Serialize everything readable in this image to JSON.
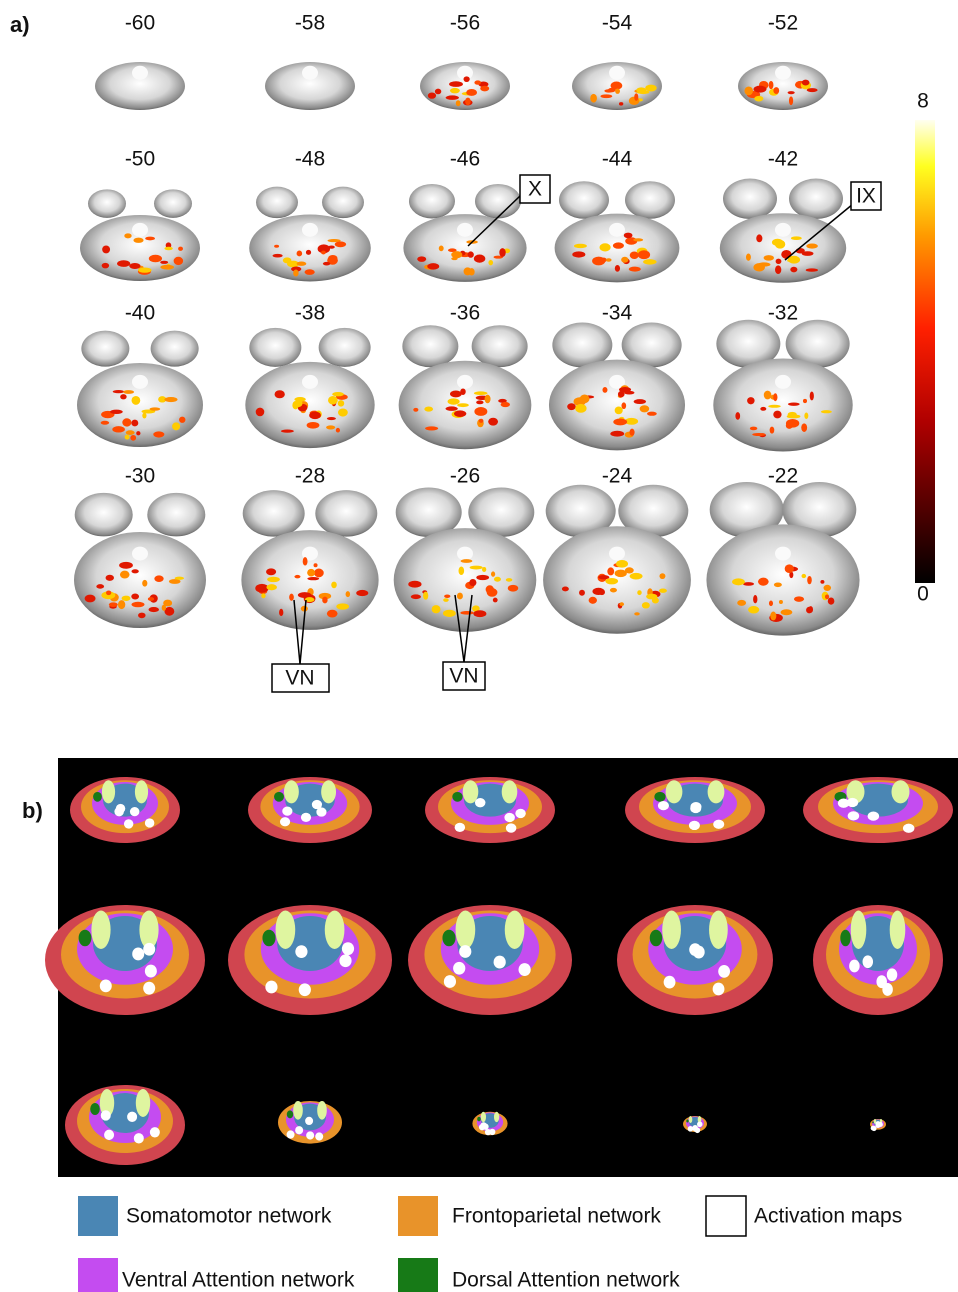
{
  "panel_a": {
    "label": "a)",
    "slice_labels": [
      [
        -60,
        -58,
        -56,
        -54,
        -52
      ],
      [
        -50,
        -48,
        -46,
        -44,
        -42
      ],
      [
        -40,
        -38,
        -36,
        -34,
        -32
      ],
      [
        -30,
        -28,
        -26,
        -24,
        -22
      ]
    ],
    "colorbar": {
      "max": 8,
      "min": 0
    },
    "annotations": [
      "X",
      "IX",
      "VN",
      "VN"
    ]
  },
  "panel_b": {
    "label": "b)"
  },
  "legend": [
    {
      "label": "Somatomotor network",
      "color": "#4a86b4"
    },
    {
      "label": "Frontoparietal network",
      "color": "#e8932a"
    },
    {
      "label": "Activation maps",
      "color": "#ffffff"
    },
    {
      "label": "Ventral Attention network",
      "color": "#c44cf0"
    },
    {
      "label": "Dorsal Attention network",
      "color": "#177a17"
    }
  ]
}
